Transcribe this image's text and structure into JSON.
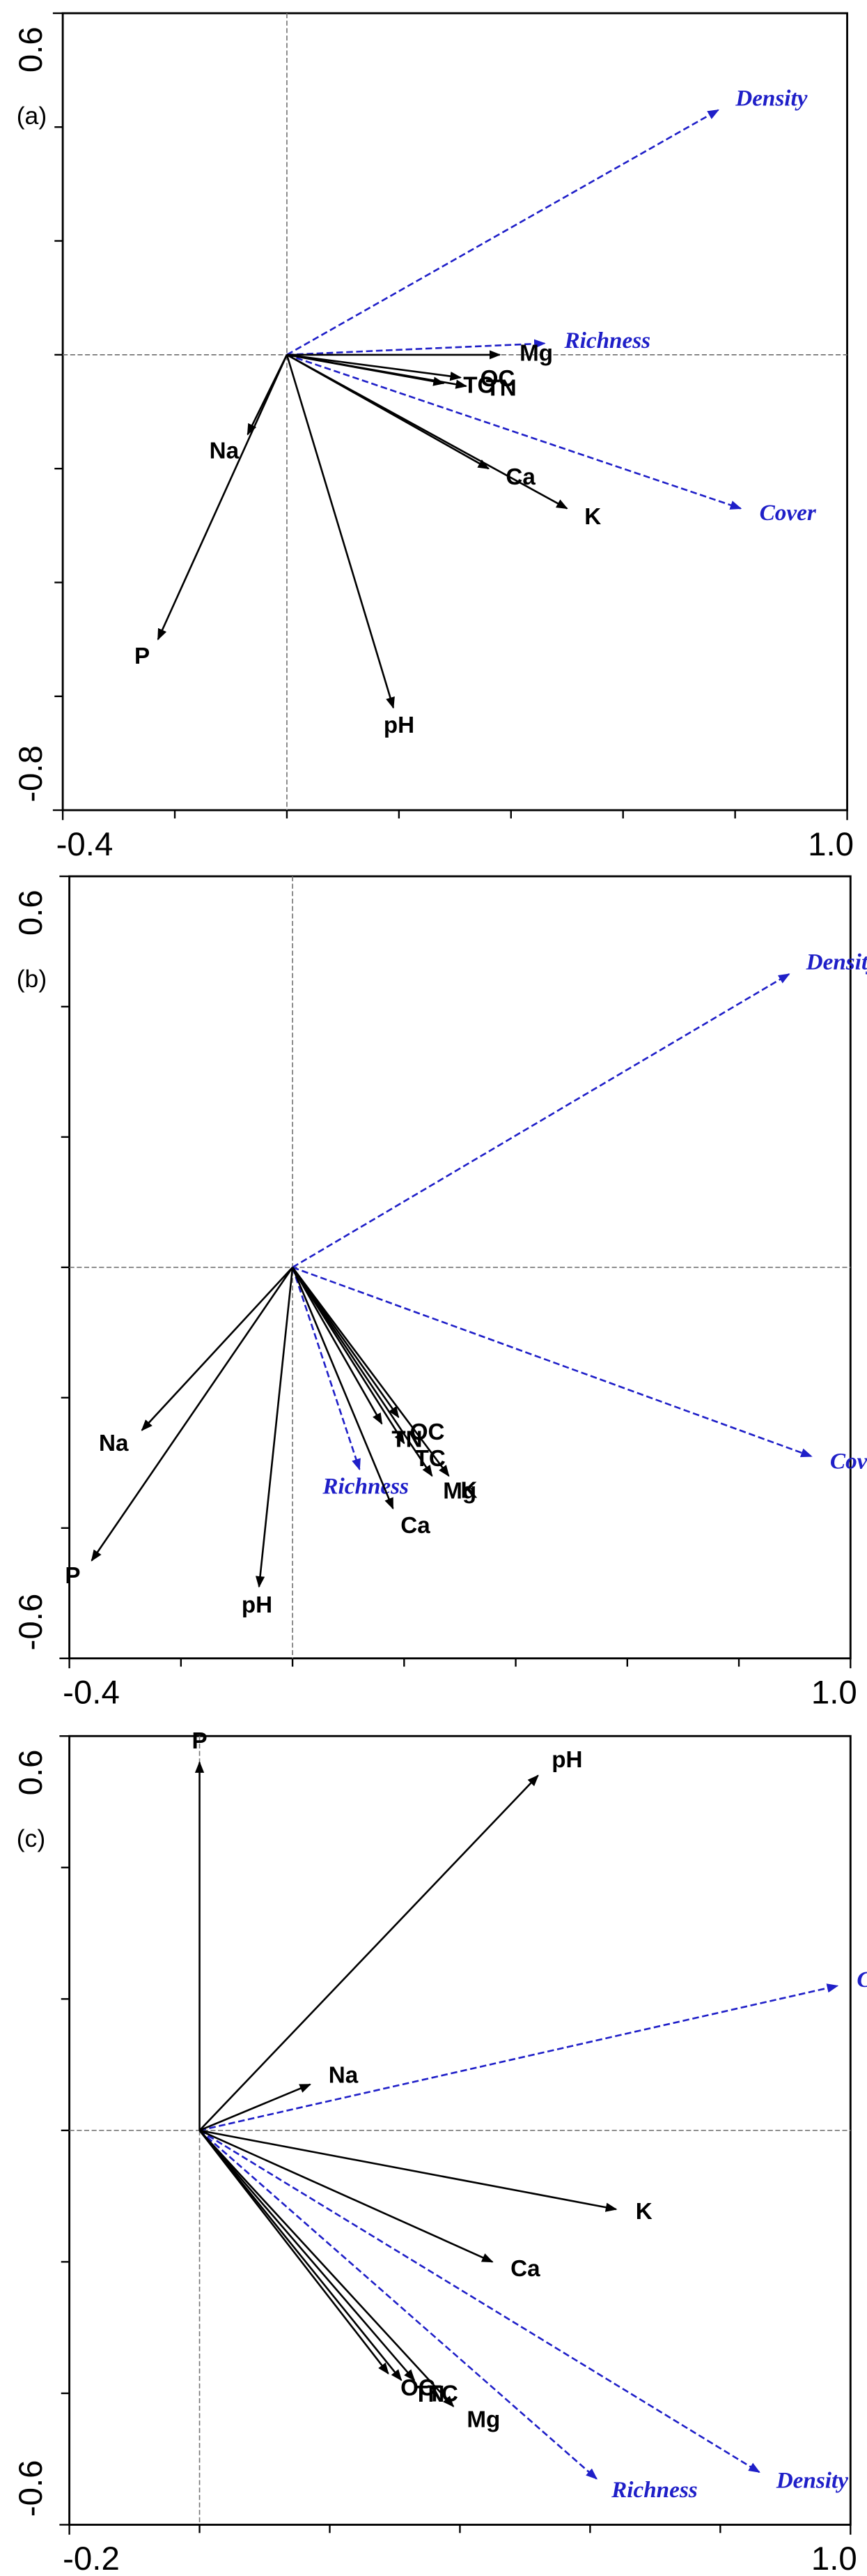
{
  "chart_data": [
    {
      "type": "biplot",
      "panel_label": "(a)",
      "xlim": [
        -0.4,
        1
      ],
      "ylim": [
        -0.8,
        0.6
      ],
      "xticks": [
        -0.4,
        {
          "value": 1,
          "label": "1.0"
        }
      ],
      "yticks": [
        -0.8,
        0.6
      ],
      "minor_xticks": [
        -0.2,
        0,
        0.2,
        0.4,
        0.6,
        0.8
      ],
      "minor_yticks": [
        -0.6,
        -0.4,
        -0.2,
        0,
        0.2,
        0.4
      ],
      "series": [
        {
          "color": "#1f1fc8",
          "dashed": true,
          "italic": true,
          "labels": [
            "Density",
            "Richness",
            "Cover"
          ],
          "x": [
            0.77,
            0.46,
            0.81
          ],
          "y": [
            0.43,
            0.02,
            -0.27
          ]
        },
        {
          "color": "#000000",
          "dashed": false,
          "italic": false,
          "labels": [
            "Mg",
            "OC",
            "TN",
            "TC",
            "Ca",
            "K",
            "Na",
            "P",
            "pH"
          ],
          "x": [
            0.38,
            0.31,
            0.32,
            0.28,
            0.36,
            0.5,
            -0.07,
            -0.23,
            0.19
          ],
          "y": [
            0,
            -0.04,
            -0.055,
            -0.05,
            -0.2,
            -0.27,
            -0.14,
            -0.5,
            -0.62
          ]
        }
      ]
    },
    {
      "type": "biplot",
      "panel_label": "(b)",
      "xlim": [
        -0.4,
        1
      ],
      "ylim": [
        -0.6,
        0.6
      ],
      "xticks": [
        -0.4,
        {
          "value": 1,
          "label": "1.0"
        }
      ],
      "yticks": [
        -0.6,
        0.6
      ],
      "minor_xticks": [
        -0.2,
        0,
        0.2,
        0.4,
        0.6,
        0.8
      ],
      "minor_yticks": [
        -0.4,
        -0.2,
        0,
        0.2,
        0.4
      ],
      "series": [
        {
          "color": "#1f1fc8",
          "dashed": true,
          "italic": true,
          "labels": [
            "Density",
            "Cover",
            "Richness"
          ],
          "x": [
            0.89,
            0.93,
            0.12
          ],
          "y": [
            0.45,
            -0.29,
            -0.31
          ]
        },
        {
          "color": "#000000",
          "dashed": false,
          "italic": false,
          "labels": [
            "Na",
            "P",
            "pH",
            "Ca",
            "TN",
            "OC",
            "TC",
            "Mg",
            "K"
          ],
          "x": [
            -0.27,
            -0.36,
            -0.06,
            0.18,
            0.16,
            0.19,
            0.2,
            0.25,
            0.28
          ],
          "y": [
            -0.25,
            -0.45,
            -0.49,
            -0.37,
            -0.24,
            -0.23,
            -0.27,
            -0.32,
            -0.32
          ]
        }
      ]
    },
    {
      "type": "biplot",
      "panel_label": "(c)",
      "xlim": [
        -0.2,
        1
      ],
      "ylim": [
        -0.6,
        0.6
      ],
      "xticks": [
        -0.2,
        {
          "value": 1,
          "label": "1.0"
        }
      ],
      "yticks": [
        -0.6,
        0.6
      ],
      "minor_xticks": [
        0,
        0.2,
        0.4,
        0.6,
        0.8
      ],
      "minor_yticks": [
        -0.4,
        -0.2,
        0,
        0.2,
        0.4
      ],
      "series": [
        {
          "color": "#1f1fc8",
          "dashed": true,
          "italic": true,
          "labels": [
            "Cover",
            "Richness",
            "Density"
          ],
          "x": [
            0.98,
            0.61,
            0.86
          ],
          "y": [
            0.22,
            -0.53,
            -0.52
          ]
        },
        {
          "color": "#000000",
          "dashed": false,
          "italic": false,
          "labels": [
            "pH",
            "P",
            "Na",
            "K",
            "Ca",
            "OC",
            "TN",
            "TC",
            "Mg"
          ],
          "x": [
            0.52,
            0,
            0.17,
            0.64,
            0.45,
            0.29,
            0.31,
            0.33,
            0.39
          ],
          "y": [
            0.54,
            0.56,
            0.07,
            -0.12,
            -0.2,
            -0.37,
            -0.38,
            -0.38,
            -0.42
          ]
        }
      ]
    }
  ]
}
